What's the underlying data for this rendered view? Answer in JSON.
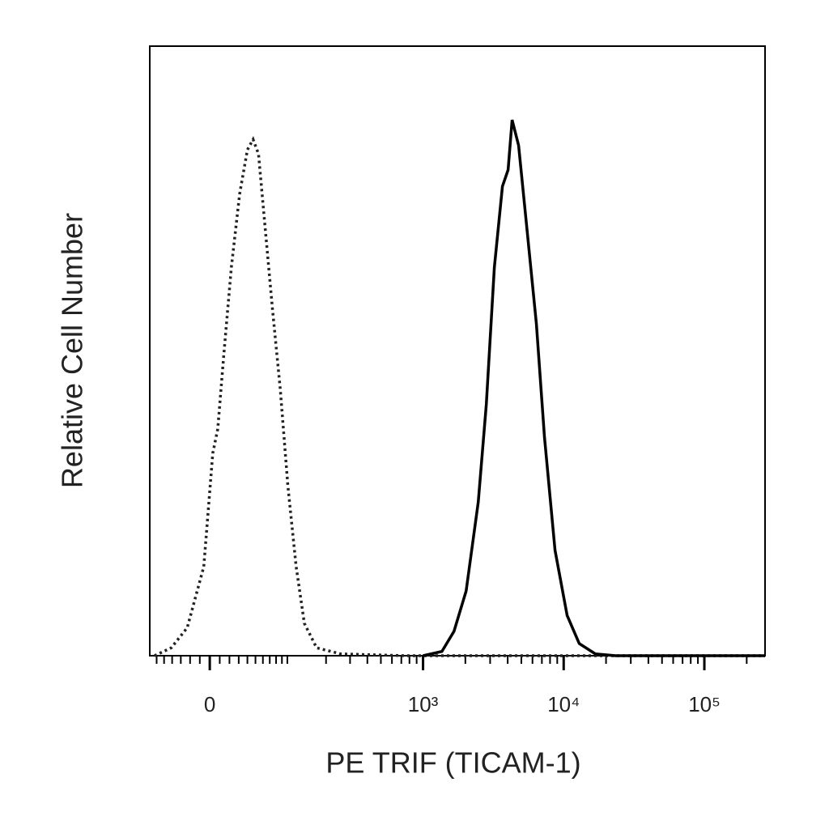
{
  "chart_data": {
    "type": "histogram-overlay",
    "x_label": "PE TRIF (TICAM-1)",
    "y_label": "Relative Cell Number",
    "xscale": "biexponential",
    "xlim": [
      -70,
      270000
    ],
    "ylim": [
      0,
      100
    ],
    "xticks": [
      0,
      {
        "value": 1000,
        "label": "10³"
      },
      {
        "value": 10000,
        "label": "10⁴"
      },
      {
        "value": 100000,
        "label": "10⁵"
      }
    ],
    "xminorticks": [
      -60,
      -50,
      -40,
      -30,
      -20,
      -10,
      10,
      20,
      30,
      40,
      50,
      60,
      70,
      80,
      90,
      100,
      200,
      300,
      400,
      500,
      600,
      700,
      800,
      900,
      2000,
      3000,
      4000,
      5000,
      6000,
      7000,
      8000,
      9000,
      20000,
      30000,
      40000,
      50000,
      60000,
      70000,
      80000,
      90000,
      200000
    ],
    "series": [
      {
        "color": "#222222",
        "dash": "dotted",
        "x": [
          -63,
          -41,
          -23,
          -6,
          3,
          8,
          14,
          22,
          31,
          40,
          47,
          54,
          62,
          74,
          87,
          101,
          118,
          137,
          170,
          256,
          750,
          270000
        ],
        "values": [
          0,
          1.3,
          4.6,
          14.6,
          33.2,
          37.2,
          49.1,
          63.7,
          75.7,
          83.0,
          84.7,
          82.3,
          71.7,
          57.1,
          43.8,
          27.9,
          14.6,
          5.3,
          1.3,
          0.3,
          0,
          0
        ]
      },
      {
        "color": "#000000",
        "dash": "solid",
        "x": [
          1000,
          1362,
          1660,
          2025,
          2470,
          2818,
          3215,
          3670,
          4026,
          4300,
          4782,
          5460,
          6400,
          7300,
          8680,
          10584,
          12900,
          16790,
          23400,
          270000
        ],
        "values": [
          0,
          0.7,
          4.0,
          10.6,
          25.2,
          41.2,
          63.7,
          77.0,
          79.7,
          87.9,
          83.7,
          70.4,
          54.4,
          35.9,
          17.3,
          6.6,
          2.0,
          0.3,
          0,
          0
        ]
      }
    ]
  }
}
